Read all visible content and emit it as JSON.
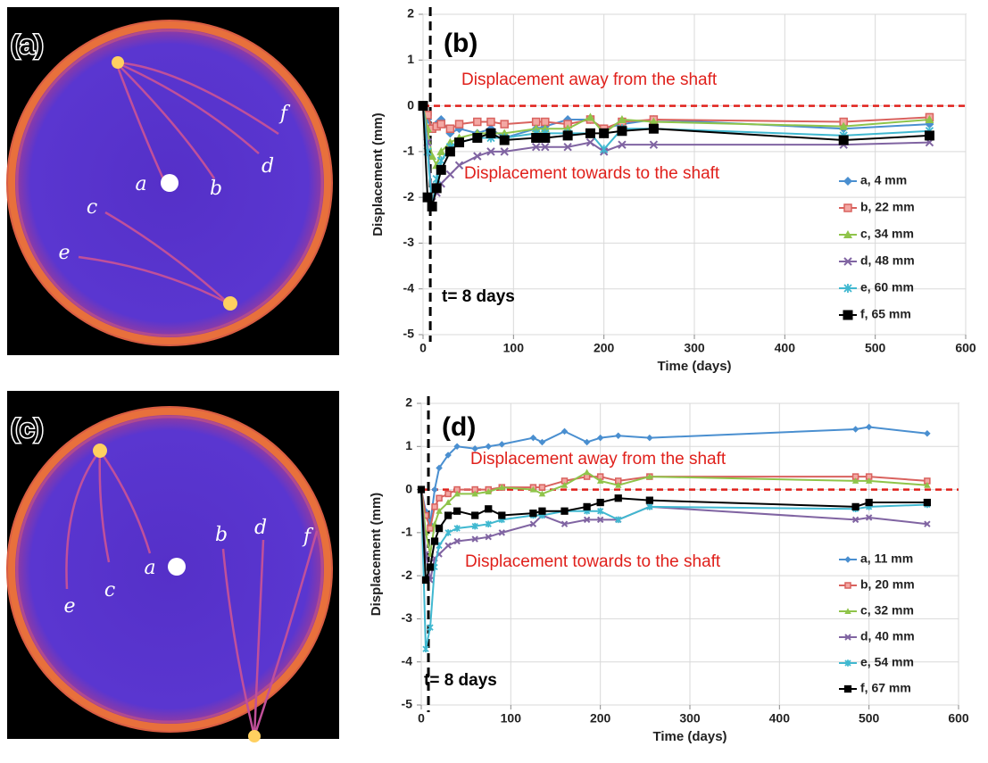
{
  "images": [
    {
      "panel_label": "(a)",
      "markers": [
        "a",
        "b",
        "c",
        "d",
        "e",
        "f"
      ]
    },
    {
      "panel_label": "(c)",
      "markers": [
        "a",
        "b",
        "c",
        "d",
        "e",
        "f"
      ]
    }
  ],
  "chart_data": [
    {
      "type": "line",
      "panel_label": "(b)",
      "xlabel": "Time (days)",
      "ylabel": "Displacement (mm)",
      "xlim": [
        0,
        600
      ],
      "xticks": [
        0,
        100,
        200,
        300,
        400,
        500,
        600
      ],
      "ylim": [
        -5,
        2
      ],
      "yticks": [
        -5,
        -4,
        -3,
        -2,
        -1,
        0,
        1,
        2
      ],
      "grid": true,
      "legend": "lower right",
      "hline": 0,
      "vline": 8,
      "annotations": [
        "Displacement away from the shaft",
        "Displacement towards to the shaft",
        "t= 8 days"
      ],
      "x": [
        0,
        5,
        10,
        15,
        20,
        30,
        40,
        60,
        75,
        90,
        125,
        135,
        160,
        185,
        200,
        220,
        255,
        465,
        560
      ],
      "series": [
        {
          "name": "a, 4 mm",
          "color": "#4a8fd0",
          "marker": "diamond",
          "values": [
            0,
            -0.3,
            -0.5,
            -0.4,
            -0.3,
            -0.6,
            -0.5,
            -0.6,
            -0.5,
            -0.7,
            -0.5,
            -0.45,
            -0.3,
            -0.3,
            -0.5,
            -0.4,
            -0.3,
            -0.5,
            -0.4
          ]
        },
        {
          "name": "b, 22 mm",
          "color": "#d9625e",
          "marker": "square",
          "values": [
            0,
            -0.2,
            -0.5,
            -0.45,
            -0.4,
            -0.5,
            -0.4,
            -0.35,
            -0.35,
            -0.4,
            -0.35,
            -0.35,
            -0.4,
            -0.3,
            -0.5,
            -0.35,
            -0.3,
            -0.35,
            -0.25
          ]
        },
        {
          "name": "c, 34 mm",
          "color": "#8fc44a",
          "marker": "triangle",
          "values": [
            0,
            -0.5,
            -1.1,
            -1.3,
            -1.0,
            -0.8,
            -0.7,
            -0.6,
            -0.6,
            -0.6,
            -0.5,
            -0.5,
            -0.5,
            -0.25,
            -0.6,
            -0.3,
            -0.35,
            -0.45,
            -0.3
          ]
        },
        {
          "name": "d, 48 mm",
          "color": "#8064a2",
          "marker": "x",
          "values": [
            0,
            -0.8,
            -2.1,
            -1.9,
            -1.7,
            -1.5,
            -1.3,
            -1.1,
            -1.0,
            -1.0,
            -0.9,
            -0.9,
            -0.9,
            -0.8,
            -1.0,
            -0.85,
            -0.85,
            -0.85,
            -0.8
          ]
        },
        {
          "name": "e, 60 mm",
          "color": "#40b8d0",
          "marker": "star",
          "values": [
            0,
            -1.0,
            -2.2,
            -1.6,
            -1.2,
            -0.9,
            -0.8,
            -0.7,
            -0.7,
            -0.7,
            -0.6,
            -0.6,
            -0.6,
            -0.6,
            -0.95,
            -0.5,
            -0.5,
            -0.65,
            -0.55
          ]
        },
        {
          "name": "f, 65 mm",
          "color": "#000000",
          "marker": "bigsquare",
          "values": [
            0,
            -2.0,
            -2.2,
            -1.8,
            -1.4,
            -1.0,
            -0.8,
            -0.7,
            -0.6,
            -0.75,
            -0.7,
            -0.7,
            -0.65,
            -0.6,
            -0.6,
            -0.55,
            -0.5,
            -0.75,
            -0.65
          ]
        }
      ]
    },
    {
      "type": "line",
      "panel_label": "(d)",
      "xlabel": "Time (days)",
      "ylabel": "Displacement (mm)",
      "xlim": [
        0,
        600
      ],
      "xticks": [
        0,
        100,
        200,
        300,
        400,
        500,
        600
      ],
      "ylim": [
        -5,
        2
      ],
      "yticks": [
        -5,
        -4,
        -3,
        -2,
        -1,
        0,
        1,
        2
      ],
      "grid": true,
      "legend": "lower right",
      "hline": 0,
      "vline": 8,
      "annotations": [
        "Displacement away from the shaft",
        "Displacement towards to the shaft",
        "t= 8 days"
      ],
      "x": [
        0,
        5,
        10,
        15,
        20,
        30,
        40,
        60,
        75,
        90,
        125,
        135,
        160,
        185,
        200,
        220,
        255,
        485,
        500,
        565
      ],
      "series": [
        {
          "name": "a, 11 mm",
          "color": "#4a8fd0",
          "marker": "diamond",
          "values": [
            0,
            -0.5,
            -0.8,
            0,
            0.5,
            0.8,
            1.0,
            0.95,
            1.0,
            1.05,
            1.2,
            1.1,
            1.35,
            1.1,
            1.2,
            1.25,
            1.2,
            1.4,
            1.45,
            1.3
          ]
        },
        {
          "name": "b, 20 mm",
          "color": "#d9625e",
          "marker": "square",
          "values": [
            0,
            -0.6,
            -0.9,
            -0.4,
            -0.2,
            -0.1,
            0.0,
            0.0,
            0.0,
            0.05,
            0.05,
            0.05,
            0.2,
            0.3,
            0.3,
            0.2,
            0.3,
            0.3,
            0.3,
            0.2
          ]
        },
        {
          "name": "c, 32 mm",
          "color": "#8fc44a",
          "marker": "triangle",
          "values": [
            0,
            -1.0,
            -1.5,
            -0.8,
            -0.5,
            -0.3,
            -0.1,
            -0.1,
            -0.05,
            0.05,
            0.0,
            -0.1,
            0.1,
            0.4,
            0.2,
            0.1,
            0.3,
            0.2,
            0.2,
            0.1
          ]
        },
        {
          "name": "d, 40 mm",
          "color": "#8064a2",
          "marker": "x",
          "values": [
            0,
            -1.5,
            -2.1,
            -1.6,
            -1.5,
            -1.3,
            -1.2,
            -1.15,
            -1.1,
            -1.0,
            -0.8,
            -0.6,
            -0.8,
            -0.7,
            -0.7,
            -0.7,
            -0.4,
            -0.7,
            -0.65,
            -0.8
          ]
        },
        {
          "name": "e, 54 mm",
          "color": "#40b8d0",
          "marker": "star",
          "values": [
            0,
            -3.7,
            -3.2,
            -1.8,
            -1.3,
            -1.0,
            -0.9,
            -0.85,
            -0.8,
            -0.7,
            -0.6,
            -0.6,
            -0.5,
            -0.5,
            -0.5,
            -0.7,
            -0.4,
            -0.45,
            -0.4,
            -0.35
          ]
        },
        {
          "name": "f, 67 mm",
          "color": "#000000",
          "marker": "bigsquare",
          "values": [
            0,
            -2.1,
            -1.8,
            -1.2,
            -0.9,
            -0.6,
            -0.5,
            -0.6,
            -0.45,
            -0.6,
            -0.55,
            -0.5,
            -0.5,
            -0.4,
            -0.3,
            -0.2,
            -0.25,
            -0.4,
            -0.3,
            -0.3
          ]
        }
      ]
    }
  ]
}
